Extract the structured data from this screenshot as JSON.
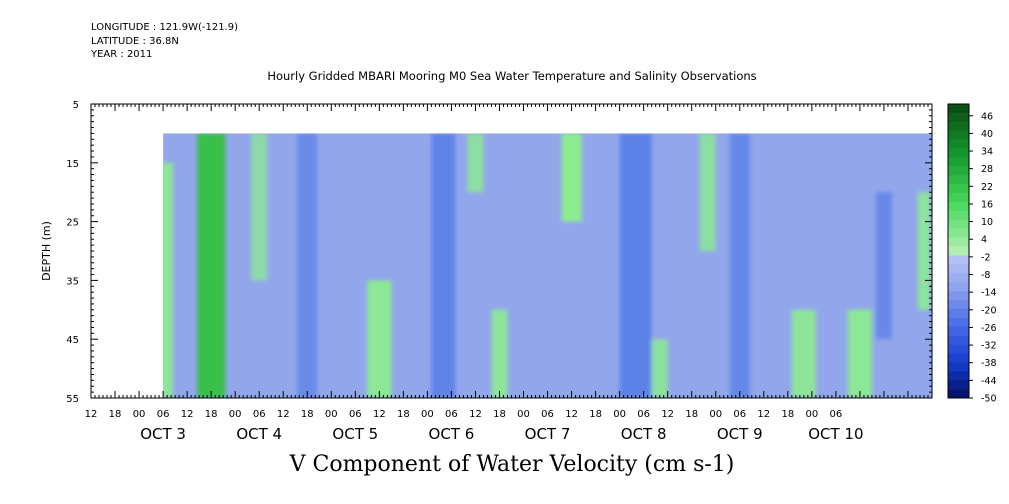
{
  "header": {
    "longitude": "LONGITUDE : 121.9W(-121.9)",
    "latitude": "LATITUDE : 36.8N",
    "year": "YEAR : 2011"
  },
  "chart_data": {
    "type": "heatmap",
    "title": "Hourly Gridded MBARI Mooring M0 Sea Water Temperature and Salinity Observations",
    "xlabel": "V Component of Water Velocity (cm s-1)",
    "ylabel": "DEPTH (m)",
    "y_ticks": [
      5,
      15,
      25,
      35,
      45,
      55
    ],
    "ylim": [
      55,
      5
    ],
    "x_hour_ticks": [
      "12",
      "18",
      "00",
      "06",
      "12",
      "18",
      "00",
      "06",
      "12",
      "18",
      "00",
      "06",
      "12",
      "18",
      "00",
      "06",
      "12",
      "18",
      "00",
      "06",
      "12",
      "18",
      "00",
      "06",
      "12",
      "18",
      "00",
      "06",
      "12",
      "18",
      "00",
      "06"
    ],
    "x_day_labels": [
      "OCT 3",
      "OCT 4",
      "OCT 5",
      "OCT 6",
      "OCT 7",
      "OCT 8",
      "OCT 9",
      "OCT 10"
    ],
    "xlim_hours": [
      -12,
      198
    ],
    "data_start_hour": 6,
    "data_end_hour": 198,
    "data_top_depth": 10,
    "colorbar": {
      "labels": [
        "46",
        "40",
        "34",
        "28",
        "22",
        "16",
        "10",
        "4",
        "-2",
        "-8",
        "-14",
        "-20",
        "-26",
        "-32",
        "-38",
        "-44",
        "-50"
      ],
      "min": -50,
      "max": 50,
      "step": 3,
      "low_color": "#050a5a",
      "high_color": "#0a4a14"
    },
    "colors": {
      "background_field": "#92a6ec",
      "positive_velocity": "#8cf08c",
      "strong_positive": "#38c048",
      "negative_velocity": "#5c82e8"
    },
    "bands": [
      {
        "hour": 6,
        "width": 5,
        "sign": 1,
        "depths": [
          15,
          55
        ],
        "strength": 0.5
      },
      {
        "hour": 18,
        "width": 7,
        "sign": 1,
        "depths": [
          10,
          55
        ],
        "strength": 0.7
      },
      {
        "hour": 30,
        "width": 4,
        "sign": 1,
        "depths": [
          10,
          35
        ],
        "strength": 0.35
      },
      {
        "hour": 42,
        "width": 5,
        "sign": -1,
        "depths": [
          10,
          55
        ],
        "strength": 0.4
      },
      {
        "hour": 60,
        "width": 6,
        "sign": 1,
        "depths": [
          35,
          55
        ],
        "strength": 0.55
      },
      {
        "hour": 76,
        "width": 6,
        "sign": -1,
        "depths": [
          10,
          55
        ],
        "strength": 0.6
      },
      {
        "hour": 84,
        "width": 4,
        "sign": 1,
        "depths": [
          10,
          20
        ],
        "strength": 0.4
      },
      {
        "hour": 90,
        "width": 4,
        "sign": 1,
        "depths": [
          40,
          55
        ],
        "strength": 0.5
      },
      {
        "hour": 108,
        "width": 5,
        "sign": 1,
        "depths": [
          10,
          25
        ],
        "strength": 0.6
      },
      {
        "hour": 124,
        "width": 8,
        "sign": -1,
        "depths": [
          10,
          55
        ],
        "strength": 0.8
      },
      {
        "hour": 130,
        "width": 4,
        "sign": 1,
        "depths": [
          45,
          55
        ],
        "strength": 0.45
      },
      {
        "hour": 142,
        "width": 4,
        "sign": 1,
        "depths": [
          10,
          30
        ],
        "strength": 0.4
      },
      {
        "hour": 150,
        "width": 5,
        "sign": -1,
        "depths": [
          10,
          55
        ],
        "strength": 0.5
      },
      {
        "hour": 166,
        "width": 6,
        "sign": 1,
        "depths": [
          40,
          55
        ],
        "strength": 0.5
      },
      {
        "hour": 180,
        "width": 6,
        "sign": 1,
        "depths": [
          40,
          55
        ],
        "strength": 0.55
      },
      {
        "hour": 186,
        "width": 4,
        "sign": -1,
        "depths": [
          20,
          45
        ],
        "strength": 0.45
      },
      {
        "hour": 196,
        "width": 3,
        "sign": 1,
        "depths": [
          20,
          40
        ],
        "strength": 0.5
      }
    ]
  }
}
